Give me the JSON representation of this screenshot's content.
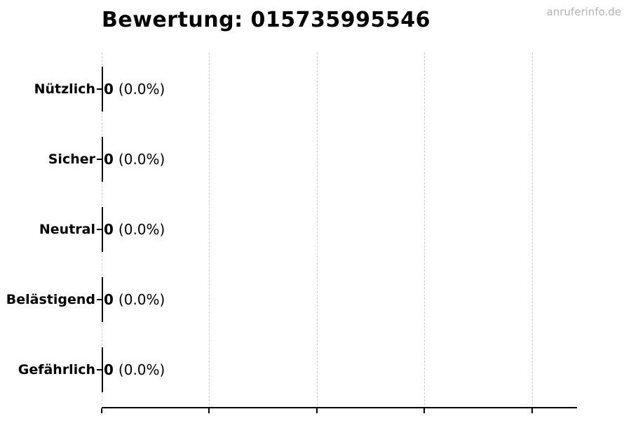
{
  "watermark": "anruferinfo.de",
  "chart_data": {
    "type": "bar",
    "orientation": "horizontal",
    "title": "Bewertung: 015735995546",
    "categories": [
      "Nützlich",
      "Sicher",
      "Neutral",
      "Belästigend",
      "Gefährlich"
    ],
    "values": [
      0,
      0,
      0,
      0,
      0
    ],
    "value_labels": [
      "0",
      "0",
      "0",
      "0",
      "0"
    ],
    "pct_labels": [
      "(0.0%)",
      "(0.0%)",
      "(0.0%)",
      "(0.0%)",
      "(0.0%)"
    ],
    "xlabel": "",
    "ylabel": "",
    "x_ticks_unlabeled": true,
    "x_tick_count": 5,
    "grid": "vertical-dashed",
    "legend": "none",
    "colors": {
      "bar_edge": "#000000",
      "axis": "#000000",
      "grid": "#cecece",
      "text": "#000000",
      "watermark": "#b3b3b3",
      "background": "#ffffff"
    }
  }
}
